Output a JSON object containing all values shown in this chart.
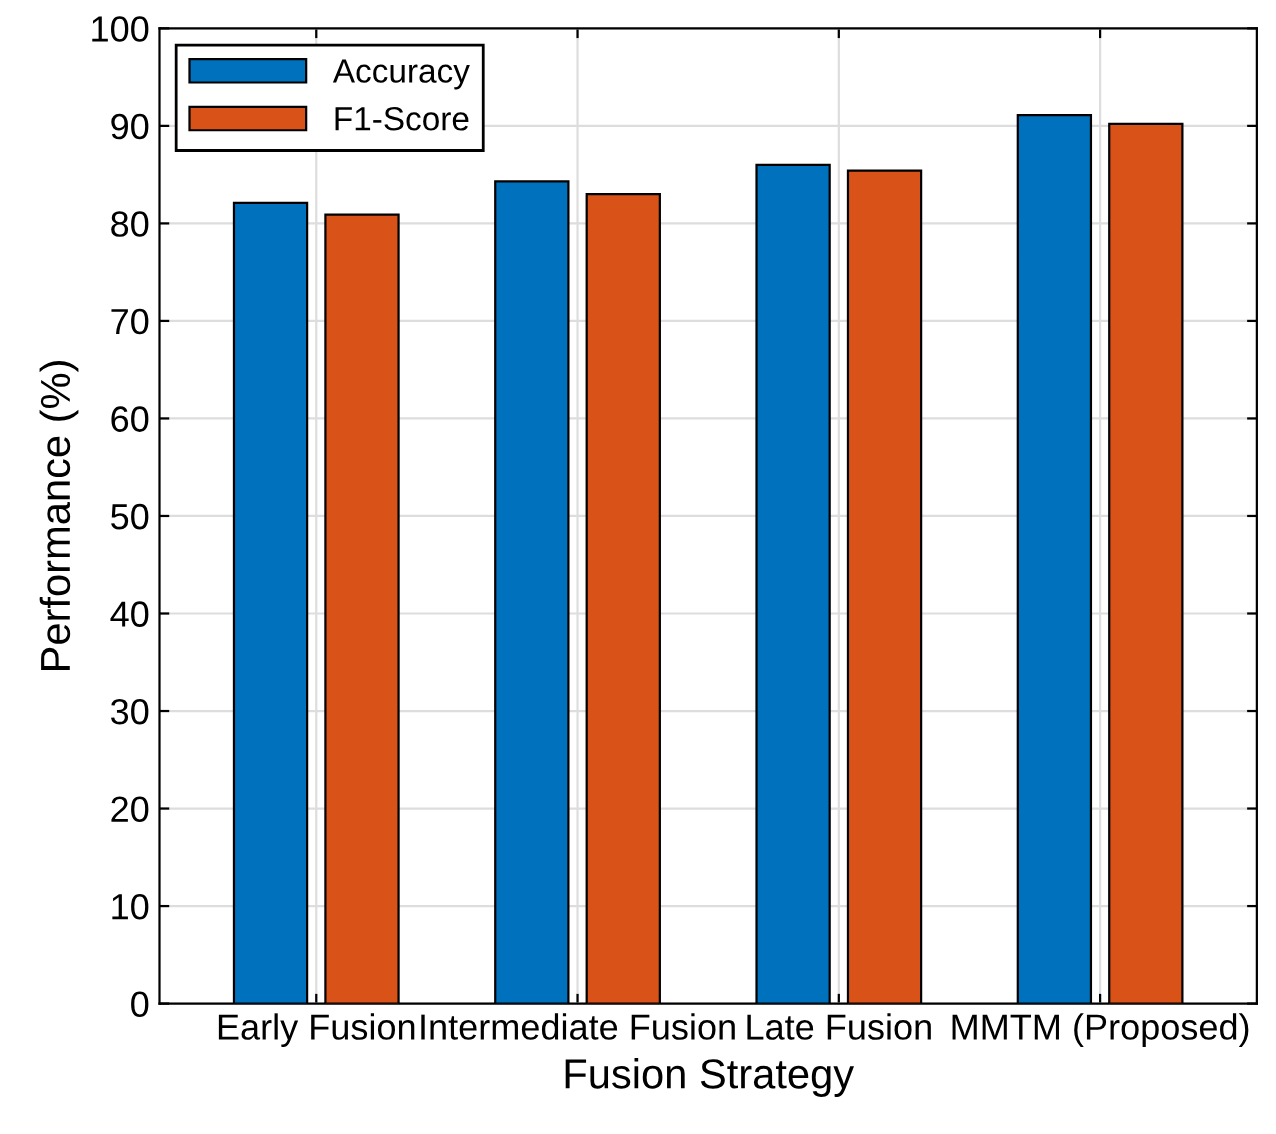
{
  "chart_data": {
    "type": "bar",
    "xlabel": "Fusion Strategy",
    "ylabel": "Performance (%)",
    "categories": [
      "Early Fusion",
      "Intermediate Fusion",
      "Late Fusion",
      "MMTM (Proposed)"
    ],
    "series": [
      {
        "name": "Accuracy",
        "color": "#0072bd",
        "values": [
          82.1,
          84.3,
          86.0,
          91.1
        ]
      },
      {
        "name": "F1-Score",
        "color": "#d95319",
        "values": [
          80.9,
          83.0,
          85.4,
          90.2
        ]
      }
    ],
    "ylim": [
      0,
      100
    ],
    "yticks": [
      0,
      10,
      20,
      30,
      40,
      50,
      60,
      70,
      80,
      90,
      100
    ],
    "grid": true,
    "legend": "top left"
  }
}
